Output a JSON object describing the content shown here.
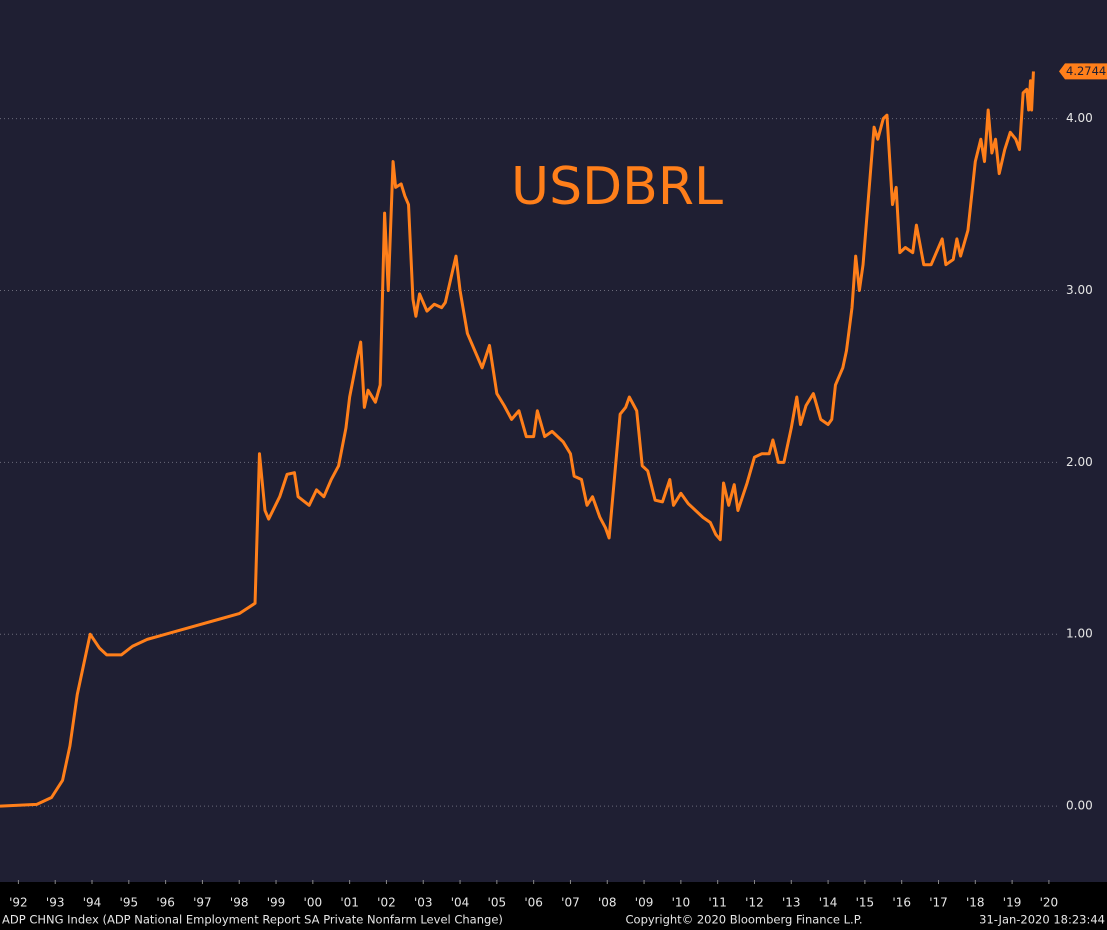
{
  "chart_data": {
    "type": "line",
    "title": "USDBRL",
    "footer_left": "ADP CHNG Index (ADP National Employment Report SA Private Nonfarm Level Change)",
    "footer_center": "Copyright© 2020 Bloomberg Finance L.P.",
    "footer_right": "31-Jan-2020 18:23:44",
    "x": [
      1992.0,
      1993.0,
      1993.4,
      1993.7,
      1993.9,
      1994.1,
      1994.45,
      1994.7,
      1994.9,
      1995.3,
      1995.6,
      1996.0,
      1997.0,
      1998.0,
      1998.5,
      1998.93,
      1999.05,
      1999.2,
      1999.3,
      1999.6,
      1999.8,
      2000.0,
      2000.1,
      2000.4,
      2000.6,
      2000.8,
      2001.0,
      2001.2,
      2001.4,
      2001.5,
      2001.7,
      2001.8,
      2001.9,
      2002.0,
      2002.2,
      2002.33,
      2002.45,
      2002.55,
      2002.68,
      2002.75,
      2002.9,
      2003.0,
      2003.1,
      2003.22,
      2003.3,
      2003.4,
      2003.6,
      2003.8,
      2004.0,
      2004.1,
      2004.39,
      2004.5,
      2004.7,
      2004.9,
      2005.1,
      2005.3,
      2005.5,
      2005.7,
      2005.9,
      2006.1,
      2006.3,
      2006.5,
      2006.6,
      2006.8,
      2007.0,
      2007.3,
      2007.5,
      2007.6,
      2007.8,
      2007.95,
      2008.1,
      2008.3,
      2008.45,
      2008.55,
      2008.85,
      2009.0,
      2009.1,
      2009.3,
      2009.45,
      2009.6,
      2009.8,
      2010.0,
      2010.2,
      2010.3,
      2010.5,
      2010.7,
      2010.9,
      2011.1,
      2011.3,
      2011.45,
      2011.57,
      2011.66,
      2011.8,
      2011.95,
      2012.05,
      2012.3,
      2012.5,
      2012.7,
      2012.9,
      2013.0,
      2013.15,
      2013.3,
      2013.5,
      2013.65,
      2013.75,
      2013.9,
      2014.1,
      2014.3,
      2014.5,
      2014.6,
      2014.7,
      2014.9,
      2015.0,
      2015.15,
      2015.25,
      2015.35,
      2015.45,
      2015.6,
      2015.75,
      2015.85,
      2016.0,
      2016.1,
      2016.25,
      2016.35,
      2016.45,
      2016.6,
      2016.8,
      2016.9,
      2017.1,
      2017.3,
      2017.5,
      2017.6,
      2017.7,
      2017.9,
      2018.0,
      2018.1,
      2018.3,
      2018.5,
      2018.65,
      2018.75,
      2018.85,
      2018.95,
      2019.05,
      2019.15,
      2019.3,
      2019.45,
      2019.6,
      2019.7,
      2019.8,
      2019.9,
      2019.95,
      2020.0,
      2020.03,
      2020.08
    ],
    "series": [
      {
        "name": "USDBRL",
        "color": "#ff7f1a",
        "values": [
          0,
          0.01,
          0.05,
          0.15,
          0.35,
          0.65,
          1.0,
          0.92,
          0.88,
          0.88,
          0.93,
          0.97,
          1.03,
          1.09,
          1.12,
          1.18,
          2.05,
          1.72,
          1.67,
          1.8,
          1.93,
          1.94,
          1.8,
          1.75,
          1.84,
          1.8,
          1.9,
          1.98,
          2.2,
          2.38,
          2.6,
          2.7,
          2.32,
          2.42,
          2.35,
          2.45,
          3.45,
          3.0,
          3.75,
          3.6,
          3.62,
          3.55,
          3.5,
          2.95,
          2.85,
          2.98,
          2.88,
          2.92,
          2.9,
          2.93,
          3.2,
          3.0,
          2.75,
          2.65,
          2.55,
          2.68,
          2.4,
          2.33,
          2.25,
          2.3,
          2.15,
          2.15,
          2.3,
          2.15,
          2.18,
          2.12,
          2.05,
          1.92,
          1.9,
          1.75,
          1.8,
          1.68,
          1.62,
          1.56,
          2.28,
          2.32,
          2.38,
          2.3,
          1.98,
          1.95,
          1.78,
          1.77,
          1.9,
          1.75,
          1.82,
          1.76,
          1.72,
          1.68,
          1.65,
          1.58,
          1.55,
          1.88,
          1.75,
          1.87,
          1.72,
          1.88,
          2.03,
          2.05,
          2.05,
          2.13,
          2.0,
          2.0,
          2.2,
          2.38,
          2.22,
          2.33,
          2.4,
          2.25,
          2.22,
          2.25,
          2.45,
          2.55,
          2.65,
          2.9,
          3.2,
          3.0,
          3.15,
          3.55,
          3.95,
          3.88,
          4.0,
          4.02,
          3.5,
          3.6,
          3.22,
          3.25,
          3.22,
          3.38,
          3.15,
          3.15,
          3.25,
          3.3,
          3.15,
          3.18,
          3.3,
          3.2,
          3.35,
          3.75,
          3.88,
          3.75,
          4.05,
          3.8,
          3.88,
          3.68,
          3.82,
          3.92,
          3.88,
          3.82,
          4.15,
          4.17,
          4.05,
          4.22,
          4.05,
          4.2744
        ]
      }
    ],
    "xlim": [
      1992,
      2020.72
    ],
    "ylim": [
      -0.43,
      4.69
    ],
    "xticks": [
      {
        "value": 1992.5,
        "label": "'92"
      },
      {
        "value": 1993.5,
        "label": "'93"
      },
      {
        "value": 1994.5,
        "label": "'94"
      },
      {
        "value": 1995.5,
        "label": "'95"
      },
      {
        "value": 1996.5,
        "label": "'96"
      },
      {
        "value": 1997.5,
        "label": "'97"
      },
      {
        "value": 1998.5,
        "label": "'98"
      },
      {
        "value": 1999.5,
        "label": "'99"
      },
      {
        "value": 2000.5,
        "label": "'00"
      },
      {
        "value": 2001.5,
        "label": "'01"
      },
      {
        "value": 2002.5,
        "label": "'02"
      },
      {
        "value": 2003.5,
        "label": "'03"
      },
      {
        "value": 2004.5,
        "label": "'04"
      },
      {
        "value": 2005.5,
        "label": "'05"
      },
      {
        "value": 2006.5,
        "label": "'06"
      },
      {
        "value": 2007.5,
        "label": "'07"
      },
      {
        "value": 2008.5,
        "label": "'08"
      },
      {
        "value": 2009.5,
        "label": "'09"
      },
      {
        "value": 2010.5,
        "label": "'10"
      },
      {
        "value": 2011.5,
        "label": "'11"
      },
      {
        "value": 2012.5,
        "label": "'12"
      },
      {
        "value": 2013.5,
        "label": "'13"
      },
      {
        "value": 2014.5,
        "label": "'14"
      },
      {
        "value": 2015.5,
        "label": "'15"
      },
      {
        "value": 2016.5,
        "label": "'16"
      },
      {
        "value": 2017.5,
        "label": "'17"
      },
      {
        "value": 2018.5,
        "label": "'18"
      },
      {
        "value": 2019.5,
        "label": "'19"
      },
      {
        "value": 2020.5,
        "label": "'20"
      }
    ],
    "yticks": [
      {
        "value": 0,
        "label": "0.00"
      },
      {
        "value": 1,
        "label": "1.00"
      },
      {
        "value": 2,
        "label": "2.00"
      },
      {
        "value": 3,
        "label": "3.00"
      },
      {
        "value": 4,
        "label": "4.00"
      }
    ],
    "grid": true
  }
}
